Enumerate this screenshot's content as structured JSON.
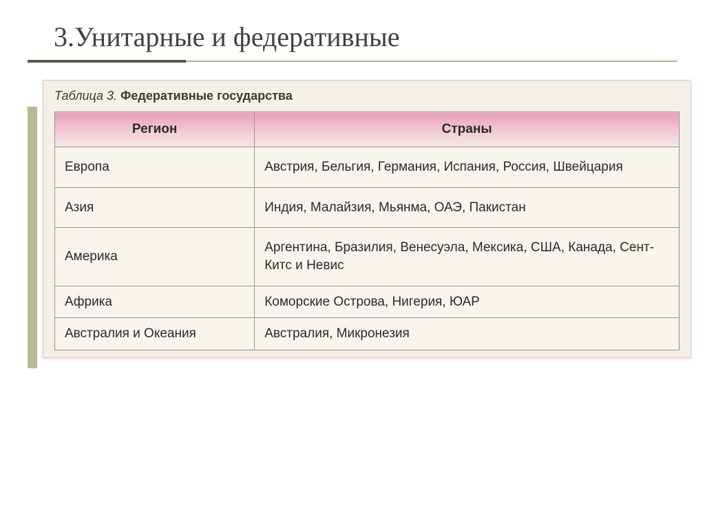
{
  "slide": {
    "title": "3.Унитарные и федеративные"
  },
  "table": {
    "caption_prefix": "Таблица 3.",
    "caption_title": "Федеративные государства",
    "header_bg_gradient": {
      "start": "#e89db8",
      "mid": "#f1c8d5",
      "end": "#f5e8e5"
    },
    "border_color": "#9a9488",
    "cell_bg": "#f8f5ee",
    "text_color": "#2a2a2a",
    "header_fontsize": 19,
    "cell_fontsize": 19,
    "columns": [
      "Регион",
      "Страны"
    ],
    "rows": [
      {
        "region": "Европа",
        "countries": "Австрия, Бельгия, Германия, Испания, Россия, Швейцария"
      },
      {
        "region": "Азия",
        "countries": "Индия, Малайзия, Мьянма, ОАЭ, Пакистан"
      },
      {
        "region": "Америка",
        "countries": "Аргентина, Бразилия, Венесуэла, Мексика, США, Канада, Сент-Китс и Невис"
      },
      {
        "region": "Африка",
        "countries": "Коморские Острова, Нигерия, ЮАР"
      },
      {
        "region": "Австралия и Океания",
        "countries": "Австралия, Микронезия"
      }
    ]
  },
  "layout": {
    "slide_bg": "#ffffff",
    "table_wrapper_bg": "#f4f0e8",
    "accent_color": "#b8b898",
    "underline_color": "#b0b090",
    "underline_accent_color": "#5a5a4a"
  }
}
